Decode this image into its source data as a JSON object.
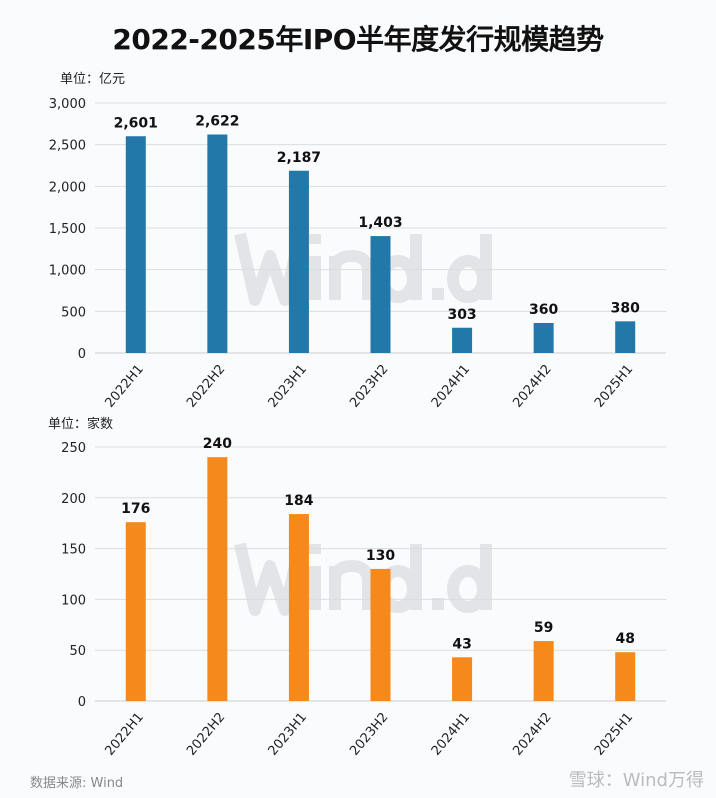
{
  "title": "2022-2025年IPO半年度发行规模趋势",
  "chart_data": [
    {
      "type": "bar",
      "unit_label": "单位：亿元",
      "categories": [
        "2022H1",
        "2022H2",
        "2023H1",
        "2023H2",
        "2024H1",
        "2024H2",
        "2025H1"
      ],
      "values": [
        2601,
        2622,
        2187,
        1403,
        303,
        360,
        380
      ],
      "data_labels": [
        "2,601",
        "2,622",
        "2,187",
        "1,403",
        "303",
        "360",
        "380"
      ],
      "ylim": [
        0,
        3000
      ],
      "yticks": [
        "0",
        "500",
        "1,000",
        "1,500",
        "2,000",
        "2,500",
        "3,000"
      ],
      "ytick_values": [
        0,
        500,
        1000,
        1500,
        2000,
        2500,
        3000
      ],
      "color": "#2278a8",
      "grid": true
    },
    {
      "type": "bar",
      "unit_label": "单位：家数",
      "categories": [
        "2022H1",
        "2022H2",
        "2023H1",
        "2023H2",
        "2024H1",
        "2024H2",
        "2025H1"
      ],
      "values": [
        176,
        240,
        184,
        130,
        43,
        59,
        48
      ],
      "data_labels": [
        "176",
        "240",
        "184",
        "130",
        "43",
        "59",
        "48"
      ],
      "ylim": [
        0,
        250
      ],
      "yticks": [
        "0",
        "50",
        "100",
        "150",
        "200",
        "250"
      ],
      "ytick_values": [
        0,
        50,
        100,
        150,
        200,
        250
      ],
      "color": "#f5891b",
      "grid": true
    }
  ],
  "watermark": "Wind.d",
  "source": "数据来源: Wind",
  "brand": "雪球：Wind万得"
}
